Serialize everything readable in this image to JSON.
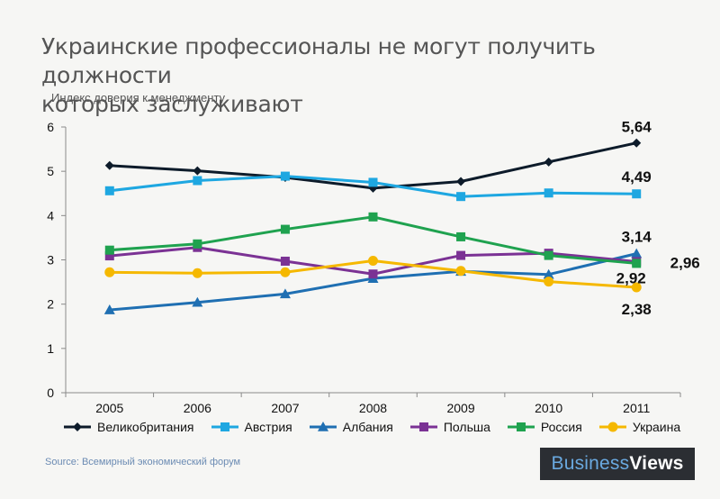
{
  "title": "Украинские профессионалы не могут получить должности которых заслуживают",
  "title_line1": "Украинские профессионалы не могут получить должности",
  "title_line2": "которых заслуживают",
  "source": "Source: Всемирный экономический форум",
  "brand": {
    "part1": "Business",
    "part2": "Views"
  },
  "chart_data": {
    "type": "line",
    "title": "Украинские профессионалы не могут получить должности которых заслуживают",
    "ylabel": "Индекс доверия к менеджменту",
    "xlabel": "",
    "categories": [
      "2005",
      "2006",
      "2007",
      "2008",
      "2009",
      "2010",
      "2011"
    ],
    "ylim": [
      0,
      6
    ],
    "yticks": [
      "0",
      "1",
      "2",
      "3",
      "4",
      "5",
      "6"
    ],
    "grid": false,
    "legend_position": "bottom",
    "series": [
      {
        "name": "Великобритания",
        "color": "#0d1b2a",
        "marker": "diamond",
        "values": [
          5.13,
          5.01,
          4.86,
          4.62,
          4.77,
          5.21,
          5.64
        ],
        "end_label": "5,64"
      },
      {
        "name": "Австрия",
        "color": "#1ea7e1",
        "marker": "square",
        "values": [
          4.56,
          4.79,
          4.89,
          4.75,
          4.43,
          4.51,
          4.49
        ],
        "end_label": "4,49"
      },
      {
        "name": "Албания",
        "color": "#1f6fb2",
        "marker": "triangle",
        "values": [
          1.87,
          2.04,
          2.23,
          2.58,
          2.74,
          2.67,
          3.14
        ],
        "end_label": "3,14"
      },
      {
        "name": "Польша",
        "color": "#7b3294",
        "marker": "square",
        "values": [
          3.09,
          3.28,
          2.97,
          2.68,
          3.1,
          3.15,
          2.96
        ],
        "end_label": "2,96"
      },
      {
        "name": "Россия",
        "color": "#1fa24f",
        "marker": "square",
        "values": [
          3.22,
          3.36,
          3.69,
          3.97,
          3.52,
          3.1,
          2.92
        ],
        "end_label": "2,92"
      },
      {
        "name": "Украина",
        "color": "#f5b800",
        "marker": "circle",
        "values": [
          2.72,
          2.7,
          2.72,
          2.98,
          2.75,
          2.51,
          2.38
        ],
        "end_label": "2,38"
      }
    ]
  }
}
